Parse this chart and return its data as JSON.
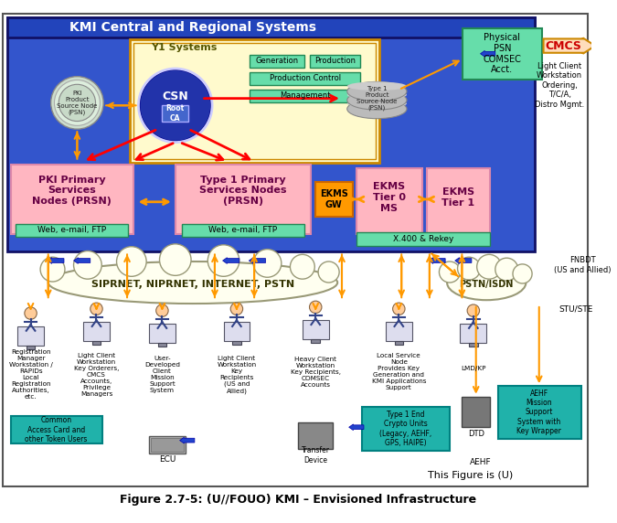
{
  "title": "KMI Central and Regional Systems",
  "caption": "Figure 2.7-5: (U//FOUO) KMI – Envisioned Infrastructure",
  "classification": "This Figure is (U)",
  "colors": {
    "bg_white": "#ffffff",
    "bg_blue": "#3355cc",
    "bg_blue2": "#4466dd",
    "title_blue": "#2244bb",
    "y1_yellow": "#fffacd",
    "y1_border": "#cc8800",
    "pink": "#ffb6c1",
    "pink_dark": "#dd88aa",
    "green": "#66ddaa",
    "green_dark": "#228855",
    "orange": "#ff9900",
    "orange_dark": "#cc6600",
    "csn_blue": "#000088",
    "csn_mid": "#2233aa",
    "root_ca": "#4466cc",
    "gray_light": "#cccccc",
    "gray_mid": "#aaaaaa",
    "teal": "#20b2aa",
    "teal_dark": "#008080",
    "red": "#dd0000",
    "nav_blue": "#2244aa",
    "cloud_fill": "#fffff0",
    "cloud_stroke": "#999977",
    "cmcs_fill": "#ffddbb",
    "cmcs_text": "#cc0000",
    "text_dark": "#222222",
    "text_navy": "#000066"
  }
}
